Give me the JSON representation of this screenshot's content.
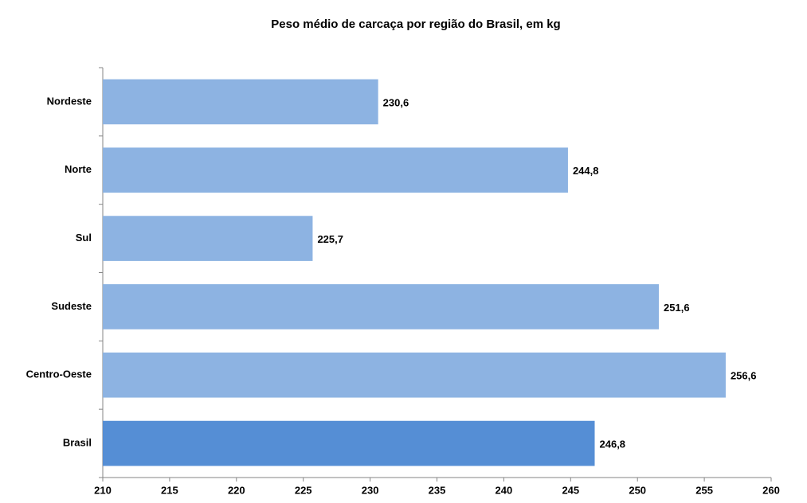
{
  "chart_data": {
    "type": "hbar",
    "title": "Peso médio de carcaça por região do Brasil, em kg",
    "categories": [
      "Nordeste",
      "Norte",
      "Sul",
      "Sudeste",
      "Centro-Oeste",
      "Brasil"
    ],
    "values": [
      230.6,
      244.8,
      225.7,
      251.6,
      256.6,
      246.8
    ],
    "value_labels": [
      "230,6",
      "244,8",
      "225,7",
      "251,6",
      "256,6",
      "246,8"
    ],
    "colors": [
      "#8db3e2",
      "#8db3e2",
      "#8db3e2",
      "#8db3e2",
      "#8db3e2",
      "#558ed5"
    ],
    "xlim": [
      210,
      260
    ],
    "xticks": [
      210,
      215,
      220,
      225,
      230,
      235,
      240,
      245,
      250,
      255,
      260
    ],
    "grid": false
  }
}
